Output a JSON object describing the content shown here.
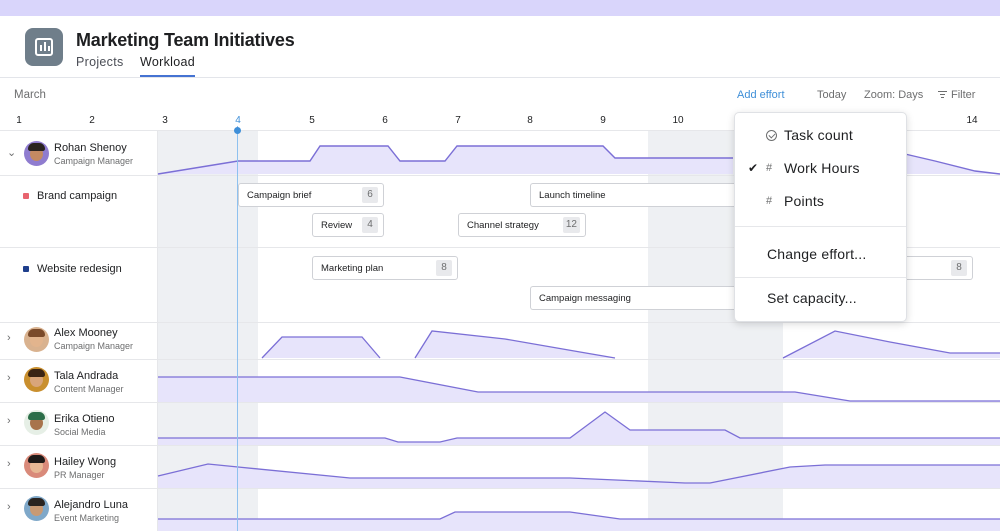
{
  "app": {
    "title": "Marketing Team Initiatives",
    "tabs": [
      {
        "label": "Projects",
        "active": false
      },
      {
        "label": "Workload",
        "active": true
      }
    ]
  },
  "toolbar": {
    "month": "March",
    "add_effort": "Add effort",
    "today": "Today",
    "zoom": "Zoom: Days",
    "filter": "Filter"
  },
  "days": [
    "1",
    "2",
    "3",
    "4",
    "5",
    "6",
    "7",
    "8",
    "9",
    "10",
    "14"
  ],
  "today_day": "4",
  "people": [
    {
      "name": "Rohan Shenoy",
      "role": "Campaign Manager",
      "expanded": true,
      "avatar_color": "#8f7ccf"
    },
    {
      "name": "Alex Mooney",
      "role": "Campaign Manager",
      "expanded": false,
      "avatar_color": "#d9b28f"
    },
    {
      "name": "Tala Andrada",
      "role": "Content Manager",
      "expanded": false,
      "avatar_color": "#c98f2e"
    },
    {
      "name": "Erika Otieno",
      "role": "Social Media",
      "expanded": false,
      "avatar_color": "#6fa37a"
    },
    {
      "name": "Hailey Wong",
      "role": "PR Manager",
      "expanded": false,
      "avatar_color": "#d98a7a"
    },
    {
      "name": "Alejandro Luna",
      "role": "Event Marketing",
      "expanded": false,
      "avatar_color": "#7fa8c9"
    }
  ],
  "projects": [
    {
      "name": "Brand campaign",
      "color": "#e8646f"
    },
    {
      "name": "Website redesign",
      "color": "#1f3f8c"
    }
  ],
  "tasks": [
    {
      "name": "Campaign brief",
      "count": "6"
    },
    {
      "name": "Review",
      "count": "4"
    },
    {
      "name": "Launch timeline",
      "count": ""
    },
    {
      "name": "Channel strategy",
      "count": "12"
    },
    {
      "name": "Marketing plan",
      "count": "8"
    },
    {
      "name": "Campaign messaging",
      "count": ""
    },
    {
      "name": "",
      "count": "8"
    }
  ],
  "menu": {
    "items": [
      {
        "label": "Task count",
        "icon": "circle-check-icon",
        "checked": false
      },
      {
        "label": "Work Hours",
        "icon": "hash-icon",
        "checked": true
      },
      {
        "label": "Points",
        "icon": "hash-icon",
        "checked": false
      }
    ],
    "change_effort": "Change effort...",
    "set_capacity": "Set capacity..."
  },
  "colors": {
    "accent": "#3f8fd8",
    "workload_line": "#7b6fd6",
    "workload_fill": "#e7e4fb",
    "tab_underline": "#4573d2"
  }
}
